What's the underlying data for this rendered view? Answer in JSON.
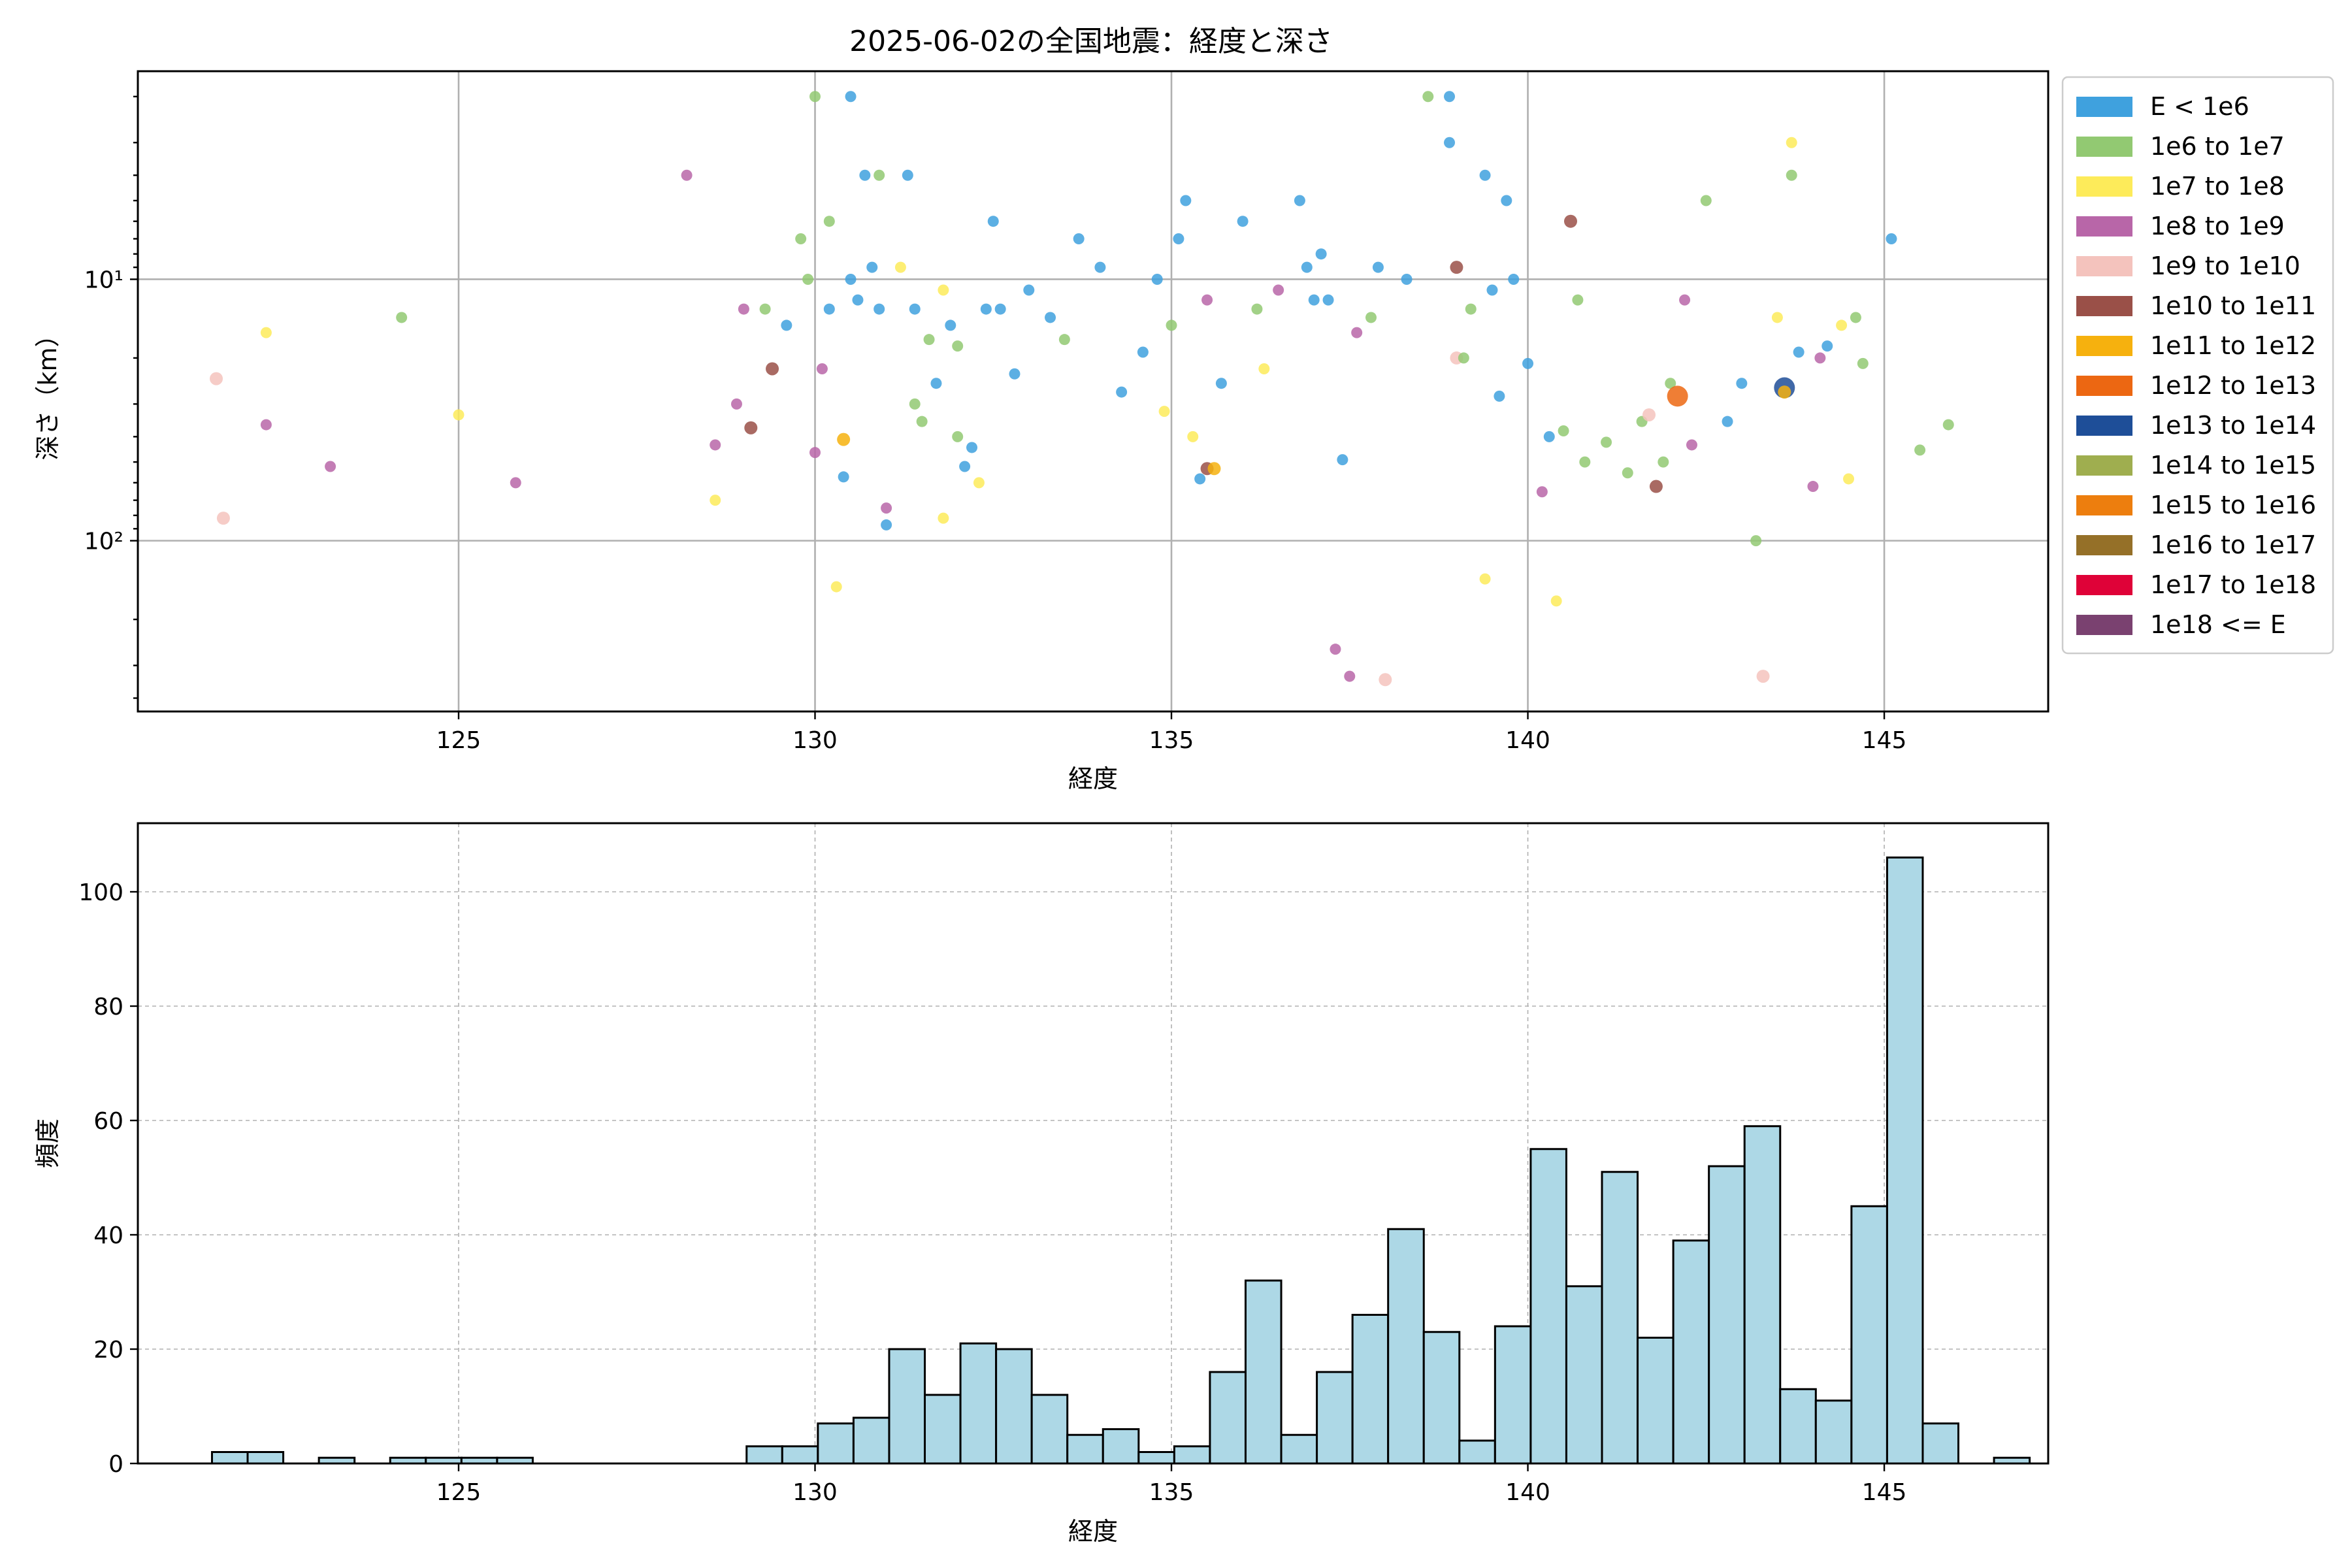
{
  "chart_data": [
    {
      "type": "scatter",
      "title": "2025-06-02の全国地震：経度と深さ",
      "xlabel": "経度",
      "ylabel": "深さ（km）",
      "xlim": [
        120.5,
        147.3
      ],
      "ylim": [
        450,
        1.6
      ],
      "yscale": "log",
      "y_inverted": true,
      "xticks": [
        125,
        130,
        135,
        140,
        145
      ],
      "xtick_labels": [
        "125",
        "130",
        "135",
        "140",
        "145"
      ],
      "yticks": [
        10,
        100
      ],
      "ytick_labels": [
        "10¹",
        "10²"
      ],
      "grid": true,
      "legend_position": "outside-right",
      "legend": [
        {
          "label": "E < 1e6",
          "color": "#3fa1de"
        },
        {
          "label": "1e6 to 1e7",
          "color": "#92c972"
        },
        {
          "label": "1e7 to 1e8",
          "color": "#fdeb5a"
        },
        {
          "label": "1e8 to 1e9",
          "color": "#b866a8"
        },
        {
          "label": "1e9 to 1e10",
          "color": "#f4c3bd"
        },
        {
          "label": "1e10 to 1e11",
          "color": "#9a5048"
        },
        {
          "label": "1e11 to 1e12",
          "color": "#f6b10e"
        },
        {
          "label": "1e12 to 1e13",
          "color": "#ec6712"
        },
        {
          "label": "1e13 to 1e14",
          "color": "#1e4e98"
        },
        {
          "label": "1e14 to 1e15",
          "color": "#9fae4f"
        },
        {
          "label": "1e15 to 1e16",
          "color": "#ed7e0e"
        },
        {
          "label": "1e16 to 1e17",
          "color": "#957028"
        },
        {
          "label": "1e17 to 1e18",
          "color": "#df0238"
        },
        {
          "label": "1e18 <= E",
          "color": "#7a4170"
        }
      ],
      "unclassified_color": "#c8c8c8",
      "points": [
        [
          121.6,
          24,
          4
        ],
        [
          121.7,
          82,
          4
        ],
        [
          122.3,
          16,
          2
        ],
        [
          122.3,
          36,
          3
        ],
        [
          123.2,
          52,
          3
        ],
        [
          124.2,
          14,
          1
        ],
        [
          125.0,
          33,
          2
        ],
        [
          125.8,
          60,
          3
        ],
        [
          128.2,
          4,
          3
        ],
        [
          128.6,
          43,
          3
        ],
        [
          128.6,
          70,
          2
        ],
        [
          128.9,
          30,
          3
        ],
        [
          129.0,
          13,
          3
        ],
        [
          129.1,
          37,
          5
        ],
        [
          129.3,
          13,
          1
        ],
        [
          129.4,
          22,
          5
        ],
        [
          129.6,
          15,
          0
        ],
        [
          129.8,
          7,
          1
        ],
        [
          129.9,
          10,
          1
        ],
        [
          130.0,
          2.0,
          1
        ],
        [
          130.0,
          46,
          3
        ],
        [
          130.1,
          22,
          3
        ],
        [
          130.2,
          13,
          0
        ],
        [
          130.2,
          6,
          1
        ],
        [
          130.3,
          150,
          2
        ],
        [
          130.4,
          41,
          6
        ],
        [
          130.4,
          57,
          0
        ],
        [
          130.5,
          2.0,
          0
        ],
        [
          130.5,
          10,
          0
        ],
        [
          130.6,
          12,
          0
        ],
        [
          130.7,
          4,
          0
        ],
        [
          130.8,
          9,
          0
        ],
        [
          130.9,
          4,
          1
        ],
        [
          130.9,
          13,
          0
        ],
        [
          131.0,
          75,
          3
        ],
        [
          131.0,
          87,
          0
        ],
        [
          131.2,
          9,
          2
        ],
        [
          131.3,
          4,
          0
        ],
        [
          131.4,
          13,
          0
        ],
        [
          131.4,
          30,
          1
        ],
        [
          131.5,
          35,
          1
        ],
        [
          131.6,
          17,
          1
        ],
        [
          131.7,
          25,
          0
        ],
        [
          131.8,
          11,
          2
        ],
        [
          131.8,
          82,
          2
        ],
        [
          131.9,
          15,
          0
        ],
        [
          132.0,
          40,
          1
        ],
        [
          132.0,
          18,
          1
        ],
        [
          132.1,
          52,
          0
        ],
        [
          132.2,
          44,
          0
        ],
        [
          132.3,
          60,
          2
        ],
        [
          132.4,
          13,
          0
        ],
        [
          132.5,
          6,
          0
        ],
        [
          132.6,
          13,
          0
        ],
        [
          132.8,
          23,
          0
        ],
        [
          133.0,
          11,
          0
        ],
        [
          133.3,
          14,
          0
        ],
        [
          133.5,
          17,
          1
        ],
        [
          133.7,
          7,
          0
        ],
        [
          134.0,
          9,
          0
        ],
        [
          134.3,
          27,
          0
        ],
        [
          134.6,
          19,
          0
        ],
        [
          134.8,
          10,
          0
        ],
        [
          134.9,
          32,
          2
        ],
        [
          135.0,
          15,
          1
        ],
        [
          135.1,
          7,
          0
        ],
        [
          135.2,
          5,
          0
        ],
        [
          135.3,
          40,
          2
        ],
        [
          135.4,
          58,
          0
        ],
        [
          135.5,
          12,
          3
        ],
        [
          135.5,
          53,
          5
        ],
        [
          135.6,
          53,
          6
        ],
        [
          135.7,
          25,
          0
        ],
        [
          136.0,
          6,
          0
        ],
        [
          136.2,
          13,
          1
        ],
        [
          136.3,
          22,
          2
        ],
        [
          136.5,
          11,
          3
        ],
        [
          136.8,
          5,
          0
        ],
        [
          136.9,
          9,
          0
        ],
        [
          137.0,
          12,
          0
        ],
        [
          137.1,
          8,
          0
        ],
        [
          137.2,
          12,
          0
        ],
        [
          137.3,
          260,
          3
        ],
        [
          137.4,
          49,
          0
        ],
        [
          137.5,
          330,
          3
        ],
        [
          137.6,
          16,
          3
        ],
        [
          137.8,
          14,
          1
        ],
        [
          137.9,
          9,
          0
        ],
        [
          138.0,
          340,
          4
        ],
        [
          138.3,
          10,
          0
        ],
        [
          138.6,
          2.0,
          1
        ],
        [
          138.9,
          2.0,
          0
        ],
        [
          138.9,
          3,
          0
        ],
        [
          139.0,
          9,
          5
        ],
        [
          139.0,
          20,
          4
        ],
        [
          139.1,
          20,
          1
        ],
        [
          139.2,
          13,
          1
        ],
        [
          139.4,
          4,
          0
        ],
        [
          139.4,
          140,
          2
        ],
        [
          139.5,
          11,
          0
        ],
        [
          139.6,
          28,
          0
        ],
        [
          139.7,
          5,
          0
        ],
        [
          139.8,
          10,
          0
        ],
        [
          140.0,
          21,
          0
        ],
        [
          140.2,
          65,
          3
        ],
        [
          140.3,
          40,
          0
        ],
        [
          140.4,
          170,
          2
        ],
        [
          140.5,
          38,
          1
        ],
        [
          140.6,
          6,
          5
        ],
        [
          140.7,
          12,
          1
        ],
        [
          140.8,
          50,
          1
        ],
        [
          141.1,
          42,
          1
        ],
        [
          141.4,
          55,
          1
        ],
        [
          141.6,
          35,
          1
        ],
        [
          141.7,
          33,
          4
        ],
        [
          141.8,
          62,
          5
        ],
        [
          141.9,
          50,
          1
        ],
        [
          142.0,
          25,
          1
        ],
        [
          142.1,
          28,
          7
        ],
        [
          142.2,
          12,
          3
        ],
        [
          142.3,
          43,
          3
        ],
        [
          142.5,
          5,
          1
        ],
        [
          142.8,
          35,
          0
        ],
        [
          143.0,
          25,
          0
        ],
        [
          143.2,
          100,
          1
        ],
        [
          143.3,
          330,
          4
        ],
        [
          143.5,
          14,
          2
        ],
        [
          143.6,
          26,
          8
        ],
        [
          143.6,
          27,
          6
        ],
        [
          143.7,
          3,
          2
        ],
        [
          143.7,
          4,
          1
        ],
        [
          143.8,
          19,
          0
        ],
        [
          144.0,
          62,
          3
        ],
        [
          144.1,
          20,
          3
        ],
        [
          144.2,
          18,
          0
        ],
        [
          144.4,
          15,
          2
        ],
        [
          144.5,
          58,
          2
        ],
        [
          144.6,
          14,
          1
        ],
        [
          144.7,
          21,
          1
        ],
        [
          145.1,
          7,
          0
        ],
        [
          145.5,
          45,
          1
        ],
        [
          145.9,
          36,
          1
        ]
      ]
    },
    {
      "type": "bar",
      "xlabel": "経度",
      "ylabel": "頻度",
      "xlim": [
        120.5,
        147.3
      ],
      "ylim": [
        0,
        112
      ],
      "xticks": [
        125,
        130,
        135,
        140,
        145
      ],
      "xtick_labels": [
        "125",
        "130",
        "135",
        "140",
        "145"
      ],
      "yticks": [
        0,
        20,
        40,
        60,
        80,
        100
      ],
      "ytick_labels": [
        "0",
        "20",
        "40",
        "60",
        "80",
        "100"
      ],
      "grid": true,
      "bin_start": 121.54,
      "bin_width": 0.5,
      "bar_color": "#add8e6",
      "values": [
        2,
        2,
        0,
        1,
        0,
        1,
        1,
        1,
        1,
        0,
        0,
        0,
        0,
        0,
        0,
        3,
        3,
        7,
        8,
        20,
        12,
        21,
        20,
        12,
        5,
        6,
        2,
        3,
        16,
        32,
        5,
        16,
        26,
        41,
        23,
        4,
        24,
        55,
        31,
        51,
        22,
        39,
        52,
        59,
        13,
        11,
        45,
        106,
        7,
        0,
        1
      ]
    }
  ]
}
